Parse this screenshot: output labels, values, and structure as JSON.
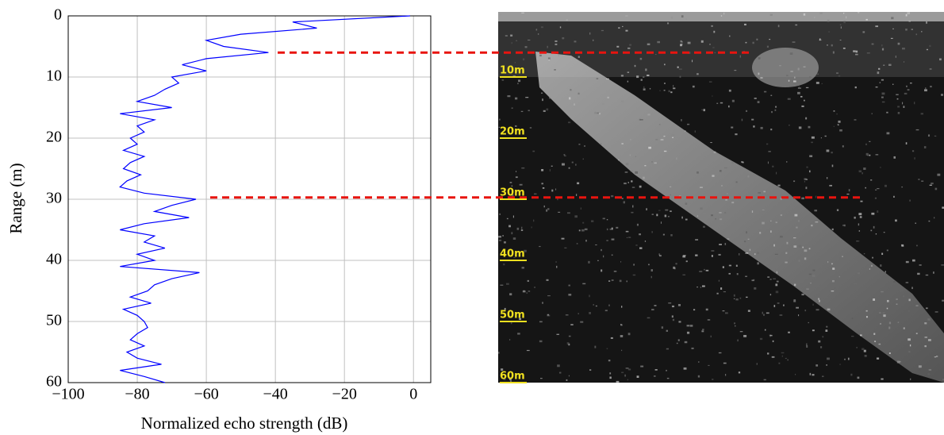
{
  "chart_data": {
    "type": "line",
    "xlabel": "Normalized echo strength (dB)",
    "ylabel": "Range (m)",
    "y": [
      0,
      1,
      2,
      3,
      4,
      5,
      6,
      7,
      8,
      9,
      10,
      11,
      12,
      13,
      14,
      15,
      16,
      17,
      18,
      19,
      20,
      21,
      22,
      23,
      24,
      25,
      26,
      27,
      28,
      29,
      30,
      31,
      32,
      33,
      34,
      35,
      36,
      37,
      38,
      39,
      40,
      41,
      42,
      43,
      44,
      45,
      46,
      47,
      48,
      49,
      50,
      51,
      52,
      53,
      54,
      55,
      56,
      57,
      58,
      59,
      60
    ],
    "values": [
      -1,
      -35,
      -28,
      -50,
      -60,
      -55,
      -42,
      -60,
      -67,
      -60,
      -70,
      -68,
      -72,
      -75,
      -80,
      -70,
      -85,
      -75,
      -80,
      -78,
      -82,
      -80,
      -84,
      -78,
      -82,
      -84,
      -79,
      -83,
      -85,
      -78,
      -63,
      -70,
      -75,
      -65,
      -78,
      -85,
      -75,
      -78,
      -72,
      -80,
      -75,
      -85,
      -62,
      -70,
      -75,
      -77,
      -82,
      -76,
      -84,
      -80,
      -78,
      -77,
      -80,
      -82,
      -78,
      -83,
      -80,
      -73,
      -85,
      -78,
      -72
    ],
    "color": "#0000ff",
    "xlim": [
      -100,
      5
    ],
    "ylim": [
      60,
      0
    ],
    "xticks": [
      {
        "value": -100,
        "label": "−100"
      },
      {
        "value": -80,
        "label": "−80"
      },
      {
        "value": -60,
        "label": "−60"
      },
      {
        "value": -40,
        "label": "−40"
      },
      {
        "value": -20,
        "label": "−20"
      },
      0
    ],
    "yticks": [
      0,
      10,
      20,
      30,
      40,
      50,
      60
    ],
    "grid": true,
    "hlines": [
      6,
      29.7
    ],
    "hline_color": "#e8140f",
    "image_labels": [
      "10m",
      "20m",
      "30m",
      "40m",
      "50m",
      "60m"
    ],
    "image_label_positions": [
      10,
      20,
      30,
      40,
      50,
      60
    ]
  }
}
